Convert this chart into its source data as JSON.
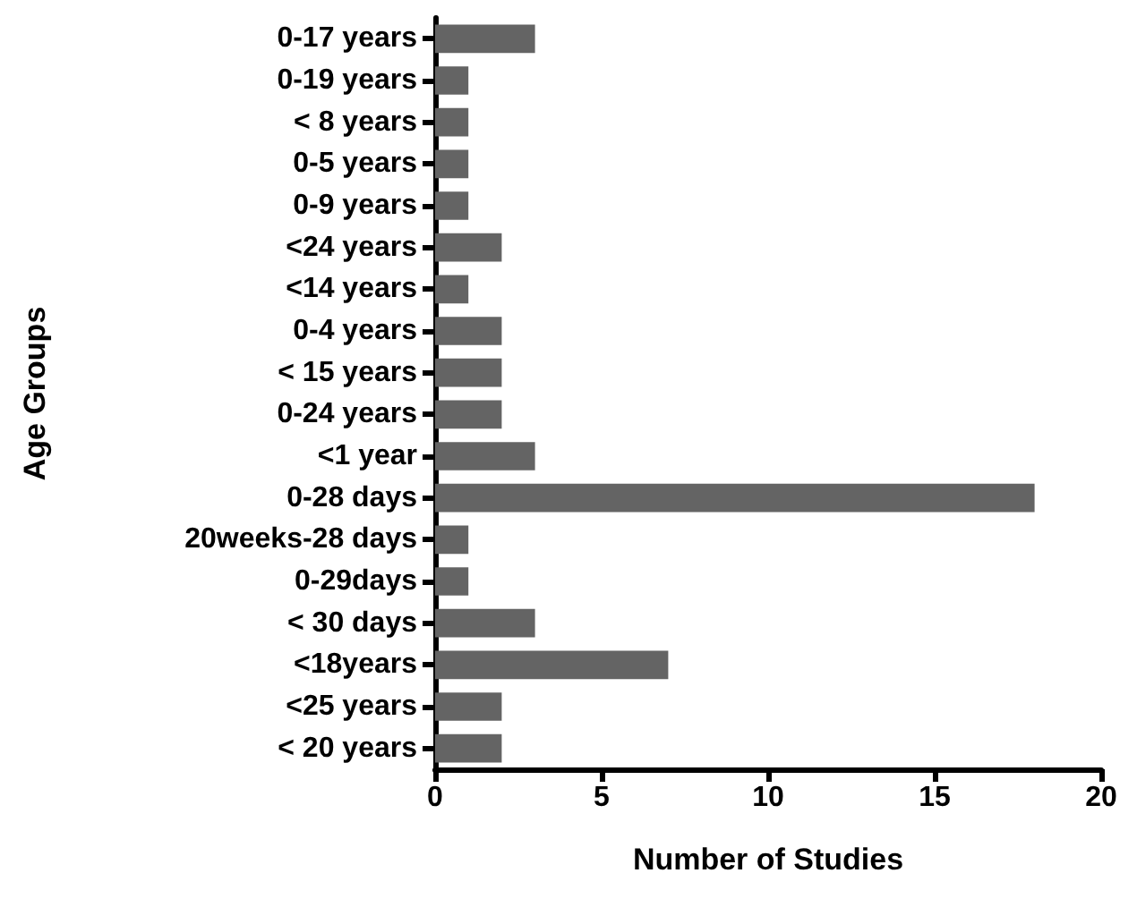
{
  "chart_data": {
    "type": "bar",
    "orientation": "horizontal",
    "xlabel": "Number of Studies",
    "ylabel": "Age Groups",
    "categories": [
      "0-17 years",
      "0-19 years",
      "< 8 years",
      "0-5 years",
      "0-9 years",
      "<24 years",
      "<14 years",
      "0-4 years",
      "< 15 years",
      "0-24 years",
      "<1 year",
      "0-28 days",
      "20weeks-28 days",
      "0-29days",
      "< 30 days",
      "<18years",
      "<25 years",
      "< 20 years"
    ],
    "values": [
      3,
      1,
      1,
      1,
      1,
      2,
      1,
      2,
      2,
      2,
      3,
      18,
      1,
      1,
      3,
      7,
      2,
      2
    ],
    "color": "#646464",
    "xlim": [
      0,
      20
    ],
    "xticks": [
      0,
      5,
      10,
      15,
      20
    ],
    "grid": false
  }
}
